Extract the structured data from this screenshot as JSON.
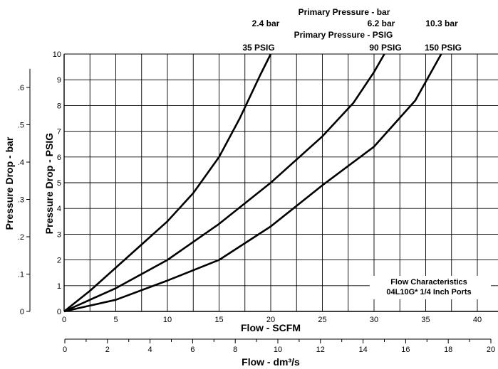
{
  "chart_data": {
    "type": "line",
    "title": "",
    "xlabel": "Flow - SCFM",
    "ylabel": "Pressure Drop - PSIG",
    "xlim": [
      0,
      42
    ],
    "ylim": [
      0,
      10
    ],
    "x_ticks": [
      "0",
      "5",
      "10",
      "15",
      "20",
      "25",
      "30",
      "35",
      "40"
    ],
    "y_ticks": [
      "0",
      "1",
      "2",
      "3",
      "4",
      "5",
      "6",
      "7",
      "8",
      "9",
      "10"
    ],
    "grid": true,
    "secondary_y": {
      "label": "Pressure Drop - bar",
      "ticks": [
        "0",
        ".1",
        ".2",
        ".3",
        ".4",
        ".5",
        ".6"
      ]
    },
    "secondary_x": {
      "label": "Flow - dm³/s",
      "ticks": [
        "0",
        "2",
        "4",
        "6",
        "8",
        "10",
        "12",
        "14",
        "16",
        "18",
        "20"
      ]
    },
    "legend_headers": {
      "bar": "Primary Pressure - bar",
      "psig": "Primary Pressure - PSIG"
    },
    "series": [
      {
        "name": "35 PSIG",
        "bar_label": "2.4 bar",
        "psig_label": "35 PSIG",
        "x": [
          0,
          2.5,
          5,
          7.5,
          10,
          12.5,
          15,
          17,
          19,
          20
        ],
        "y": [
          0,
          0.8,
          1.7,
          2.6,
          3.5,
          4.6,
          6,
          7.5,
          9.2,
          10
        ]
      },
      {
        "name": "90 PSIG",
        "bar_label": "6.2 bar",
        "psig_label": "90 PSIG",
        "x": [
          0,
          5,
          10,
          15,
          20,
          25,
          28,
          30,
          31
        ],
        "y": [
          0,
          0.9,
          2,
          3.4,
          5,
          6.8,
          8.1,
          9.3,
          10
        ]
      },
      {
        "name": "150 PSIG",
        "bar_label": "10.3 bar",
        "psig_label": "150 PSIG",
        "x": [
          0,
          5,
          10,
          15,
          20,
          25,
          30,
          34,
          36.5
        ],
        "y": [
          0,
          0.45,
          1.2,
          2,
          3.3,
          4.9,
          6.4,
          8.2,
          10
        ]
      }
    ],
    "annotation": {
      "line1": "Flow Characteristics",
      "line2": "04L10G* 1/4 Inch Ports"
    }
  }
}
